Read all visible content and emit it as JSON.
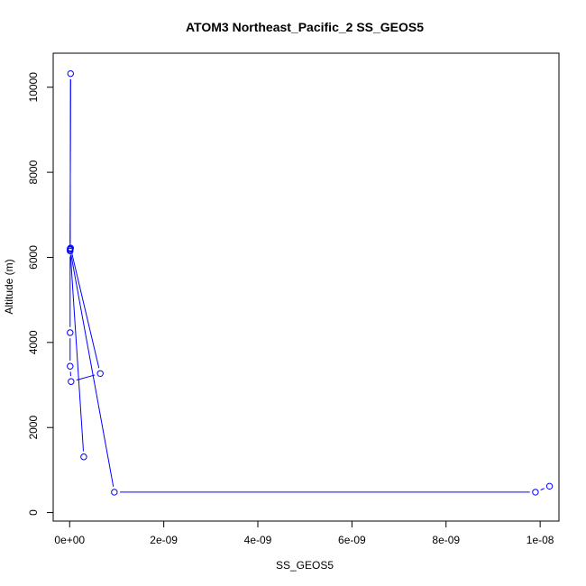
{
  "chart_data": {
    "type": "line",
    "title": "ATOM3 Northeast_Pacific_2 SS_GEOS5",
    "xlabel": "SS_GEOS5",
    "ylabel": "Altitude (m)",
    "xlim": [
      -3.5e-10,
      1.04e-08
    ],
    "ylim": [
      -200,
      10800
    ],
    "x_ticks": [
      {
        "value": 0,
        "label": "0e+00"
      },
      {
        "value": 2e-09,
        "label": "2e-09"
      },
      {
        "value": 4e-09,
        "label": "4e-09"
      },
      {
        "value": 6e-09,
        "label": "6e-09"
      },
      {
        "value": 8e-09,
        "label": "8e-09"
      },
      {
        "value": 1e-08,
        "label": "1e-08"
      }
    ],
    "y_ticks": [
      {
        "value": 0,
        "label": "0"
      },
      {
        "value": 2000,
        "label": "2000"
      },
      {
        "value": 4000,
        "label": "4000"
      },
      {
        "value": 6000,
        "label": "6000"
      },
      {
        "value": 8000,
        "label": "8000"
      },
      {
        "value": 10000,
        "label": "10000"
      }
    ],
    "series": [
      {
        "color": "#0000ff",
        "marker": "open-circle",
        "x": [
          1.02e-08,
          9.9e-09,
          9.5e-10,
          1e-11,
          2e-11,
          6.5e-10,
          3e-11,
          1e-11,
          1e-11,
          1e-11,
          2e-11,
          1e-11,
          3e-10
        ],
        "y": [
          620,
          480,
          480,
          6180,
          6220,
          3270,
          3080,
          3440,
          4230,
          6150,
          10320,
          6200,
          1310
        ]
      }
    ]
  }
}
